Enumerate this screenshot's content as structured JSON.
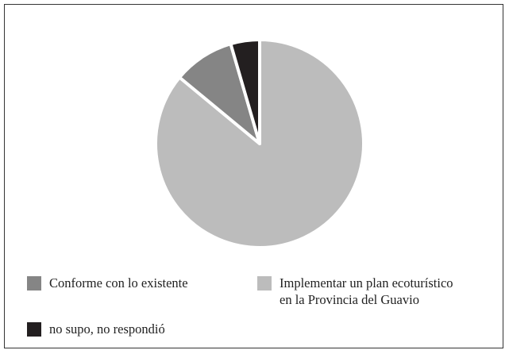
{
  "chart_data": {
    "type": "pie",
    "title": "",
    "slices": [
      {
        "label": "Implementar un plan ecoturístico\nen la Provincia del Guavio",
        "value": 86,
        "color": "#bcbcbc"
      },
      {
        "label": "Conforme con lo existente",
        "value": 9.5,
        "color": "#858585"
      },
      {
        "label": "no supo, no respondió",
        "value": 4.5,
        "color": "#231f20"
      }
    ],
    "start_angle_deg": 0,
    "direction": "clockwise",
    "separator_color": "#ffffff",
    "legend_position": "bottom"
  }
}
